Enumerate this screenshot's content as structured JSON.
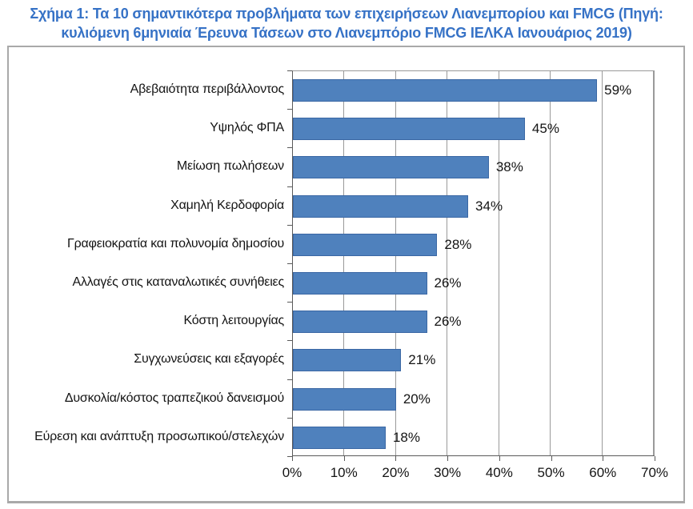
{
  "figure": {
    "title_line1": "Σχήμα 1: Τα 10 σημαντικότερα προβλήματα των επιχειρήσεων Λιανεμπορίου και FMCG (Πηγή:",
    "title_line2": "κυλιόμενη 6μηνιαία Έρευνα Τάσεων στο Λιανεμπόριο FMCG ΙΕΛΚΑ Ιανουάριος 2019)",
    "title_color": "#3672c6"
  },
  "chart_data": {
    "type": "bar",
    "orientation": "horizontal",
    "title": "Σχήμα 1: Τα 10 σημαντικότερα προβλήματα των επιχειρήσεων Λιανεμπορίου και FMCG (Πηγή: κυλιόμενη 6μηνιαία Έρευνα Τάσεων στο Λιανεμπόριο FMCG ΙΕΛΚΑ Ιανουάριος 2019)",
    "categories": [
      "Αβεβαιότητα περιβάλλοντος",
      "Υψηλός ΦΠΑ",
      "Μείωση πωλήσεων",
      "Χαμηλή Κερδοφορία",
      "Γραφειοκρατία και πολυνομία δημοσίου",
      "Αλλαγές στις καταναλωτικές συνήθειες",
      "Κόστη λειτουργίας",
      "Συγχωνεύσεις και εξαγορές",
      "Δυσκολία/κόστος τραπεζικού δανεισμού",
      "Εύρεση και ανάπτυξη προσωπικού/στελεχών"
    ],
    "values": [
      59,
      45,
      38,
      34,
      28,
      26,
      26,
      21,
      20,
      18
    ],
    "value_labels": [
      "59%",
      "45%",
      "38%",
      "34%",
      "28%",
      "26%",
      "26%",
      "21%",
      "20%",
      "18%"
    ],
    "x_tick_labels": [
      "0%",
      "10%",
      "20%",
      "30%",
      "40%",
      "50%",
      "60%",
      "70%"
    ],
    "xlim": [
      0,
      70
    ],
    "xlabel": "",
    "ylabel": "",
    "grid": true,
    "legend": false,
    "colors": {
      "bar_fill": "#4f81bd",
      "bar_border": "#3a67a4",
      "gridline": "#9a9a9a",
      "axis": "#5a5a5a",
      "text": "#141414"
    }
  }
}
